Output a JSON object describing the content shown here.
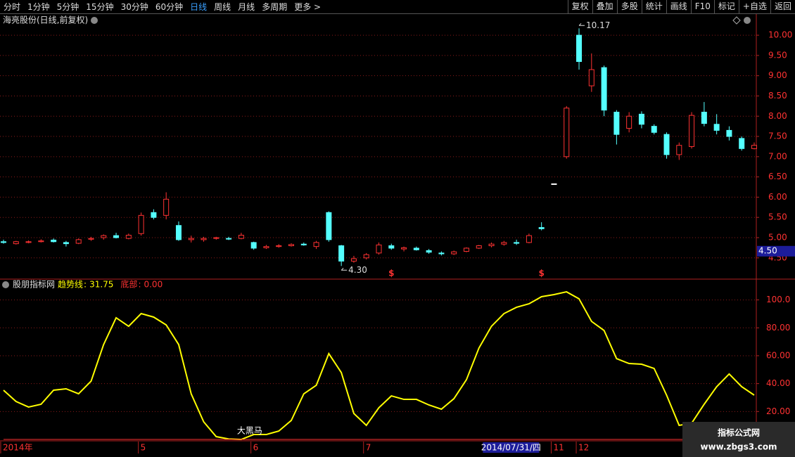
{
  "toolbar": {
    "left": [
      "分时",
      "1分钟",
      "5分钟",
      "15分钟",
      "30分钟",
      "60分钟",
      "日线",
      "周线",
      "月线",
      "多周期",
      "更多 >"
    ],
    "active": 6,
    "right": [
      "复权",
      "叠加",
      "多股",
      "统计",
      "画线",
      "F10",
      "标记",
      "+自选",
      "返回"
    ]
  },
  "watermark": {
    "title": "指标公式网",
    "url": "www.zbgs3.com"
  },
  "chart_data": [
    {
      "type": "candlestick",
      "title": "海亮股份(日线,前复权)",
      "up_color": "#ff3232",
      "down_color": "#54ffff",
      "flat_color": "#ffffff",
      "open": [
        4.9,
        4.85,
        4.88,
        4.9,
        4.94,
        4.88,
        4.86,
        4.96,
        5.0,
        5.05,
        4.98,
        5.1,
        5.62,
        5.55,
        5.3,
        4.95,
        4.95,
        4.98,
        4.98,
        4.98,
        4.88,
        4.75,
        4.78,
        4.8,
        4.84,
        4.78,
        5.62,
        4.8,
        4.42,
        4.5,
        4.62,
        4.8,
        4.72,
        4.74,
        4.68,
        4.62,
        4.6,
        4.66,
        4.74,
        4.8,
        4.84,
        4.88,
        4.88,
        5.25,
        6.33,
        7.0,
        10.0,
        8.75,
        9.2,
        8.1,
        7.7,
        8.05,
        7.75,
        7.55,
        7.05,
        7.25,
        8.1,
        7.8,
        7.65,
        7.45,
        7.2
      ],
      "high": [
        4.95,
        4.92,
        4.93,
        4.96,
        4.98,
        4.92,
        4.98,
        5.02,
        5.08,
        5.12,
        5.1,
        5.62,
        5.7,
        6.12,
        5.4,
        5.05,
        5.02,
        5.02,
        5.02,
        5.12,
        4.9,
        4.82,
        4.84,
        4.86,
        4.88,
        4.92,
        5.65,
        4.82,
        4.55,
        4.62,
        4.88,
        4.85,
        4.78,
        4.78,
        4.72,
        4.66,
        4.68,
        4.76,
        4.82,
        4.88,
        4.92,
        4.95,
        5.1,
        5.38,
        6.33,
        8.25,
        10.17,
        9.55,
        9.25,
        8.15,
        8.1,
        8.12,
        7.8,
        7.6,
        7.35,
        8.1,
        8.35,
        8.05,
        7.75,
        7.5,
        7.35
      ],
      "low": [
        4.85,
        4.83,
        4.86,
        4.88,
        4.88,
        4.78,
        4.84,
        4.92,
        4.95,
        4.98,
        4.96,
        5.05,
        5.45,
        5.45,
        4.92,
        4.88,
        4.9,
        4.95,
        4.94,
        4.96,
        4.7,
        4.72,
        4.75,
        4.78,
        4.8,
        4.72,
        4.9,
        4.3,
        4.38,
        4.46,
        4.58,
        4.7,
        4.66,
        4.68,
        4.6,
        4.56,
        4.57,
        4.64,
        4.72,
        4.76,
        4.8,
        4.82,
        4.86,
        5.18,
        6.33,
        6.95,
        9.15,
        8.6,
        8.0,
        7.3,
        7.6,
        7.7,
        7.55,
        6.95,
        6.92,
        7.2,
        7.75,
        7.55,
        7.4,
        7.15,
        7.18
      ],
      "close": [
        4.88,
        4.9,
        4.9,
        4.92,
        4.9,
        4.85,
        4.95,
        4.98,
        5.05,
        5.0,
        5.06,
        5.55,
        5.5,
        5.95,
        4.95,
        4.98,
        4.98,
        5.0,
        4.97,
        5.06,
        4.74,
        4.78,
        4.8,
        4.83,
        4.82,
        4.88,
        4.95,
        4.42,
        4.48,
        4.58,
        4.82,
        4.74,
        4.75,
        4.7,
        4.64,
        4.6,
        4.65,
        4.74,
        4.8,
        4.84,
        4.88,
        4.86,
        5.05,
        5.22,
        6.33,
        8.2,
        9.35,
        9.15,
        8.15,
        7.55,
        8.0,
        7.8,
        7.6,
        7.05,
        7.28,
        8.02,
        7.82,
        7.65,
        7.5,
        7.2,
        7.28
      ],
      "ylim": [
        4.01,
        10.21
      ],
      "yticks": [
        {
          "value": 10,
          "label": "10.00"
        },
        {
          "value": 9.5,
          "label": "9.50"
        },
        {
          "value": 9,
          "label": "9.00"
        },
        {
          "value": 8.5,
          "label": "8.50"
        },
        {
          "value": 8,
          "label": "8.00"
        },
        {
          "value": 7.5,
          "label": "7.50"
        },
        {
          "value": 7,
          "label": "7.00"
        },
        {
          "value": 6.5,
          "label": "6.50"
        },
        {
          "value": 6,
          "label": "6.00"
        },
        {
          "value": 5.5,
          "label": "5.50"
        },
        {
          "value": 5,
          "label": "5.00"
        },
        {
          "value": 4.5,
          "label": "4.50"
        }
      ],
      "grid": true,
      "annotations": [
        {
          "index": 46,
          "at": "high",
          "label": "10.17"
        },
        {
          "index": 27,
          "at": "low",
          "label": "4.30"
        }
      ],
      "signals": [
        {
          "index": 31,
          "label": "$"
        },
        {
          "index": 43,
          "label": "$"
        }
      ],
      "cursor_price": {
        "value": 4.5,
        "label": "4.50"
      },
      "x_labels": [
        {
          "index": 0,
          "label": "2014年"
        },
        {
          "index": 11,
          "label": "5"
        },
        {
          "index": 20,
          "label": "6"
        },
        {
          "index": 29,
          "label": "7"
        },
        {
          "index": 44,
          "label": "11"
        },
        {
          "index": 46,
          "label": "12"
        }
      ],
      "cursor_date": {
        "index": 40,
        "label": "2014/07/31/四"
      }
    },
    {
      "type": "line",
      "title": "股朋指标网",
      "legend_separator": ":",
      "series": [
        {
          "name": "趋势线",
          "color": "#ffff00",
          "values": [
            35.3,
            27.2,
            23.2,
            25.2,
            35.3,
            36.3,
            32.7,
            41.8,
            68.0,
            87.2,
            81.1,
            90.2,
            87.7,
            82.1,
            68.0,
            32.7,
            12.6,
            2.0,
            0.3,
            0,
            3.5,
            3.5,
            6.0,
            13.6,
            32.7,
            38.8,
            61.5,
            47.9,
            18.6,
            10.1,
            22.7,
            31.2,
            28.7,
            28.7,
            24.7,
            21.7,
            29.2,
            42.8,
            65.5,
            81.1,
            90.2,
            94.7,
            97.2,
            102.3,
            103.8,
            105.8,
            100.8,
            84.6,
            78.1,
            57.9,
            54.4,
            53.9,
            50.9,
            31.7,
            10.1,
            11.6,
            25.2,
            37.8,
            46.9,
            37.8,
            31.75
          ]
        },
        {
          "name": "底部",
          "color": "#ff3232",
          "current_label": "0.00",
          "values": [
            0,
            0,
            0,
            0,
            0,
            0,
            0,
            0,
            0,
            0,
            0,
            0,
            0,
            0,
            0,
            0,
            0,
            0,
            0,
            0,
            0,
            0,
            0,
            0,
            0,
            0,
            0,
            0,
            0,
            0,
            0,
            0,
            0,
            0,
            0,
            0,
            0,
            0,
            0,
            0,
            0,
            0,
            0,
            0,
            0,
            0,
            0,
            0,
            0,
            0,
            0,
            0,
            0,
            0,
            0,
            0,
            0,
            0,
            0,
            0,
            0
          ]
        }
      ],
      "ylim": [
        0,
        114.4
      ],
      "yticks": [
        {
          "value": 100,
          "label": "100.0"
        },
        {
          "value": 80,
          "label": "80.00"
        },
        {
          "value": 60,
          "label": "60.00"
        },
        {
          "value": 40,
          "label": "40.00"
        },
        {
          "value": 20,
          "label": "20.00"
        }
      ],
      "grid": true,
      "annotations": [
        {
          "index": 19,
          "label": "大黑马"
        }
      ]
    }
  ]
}
